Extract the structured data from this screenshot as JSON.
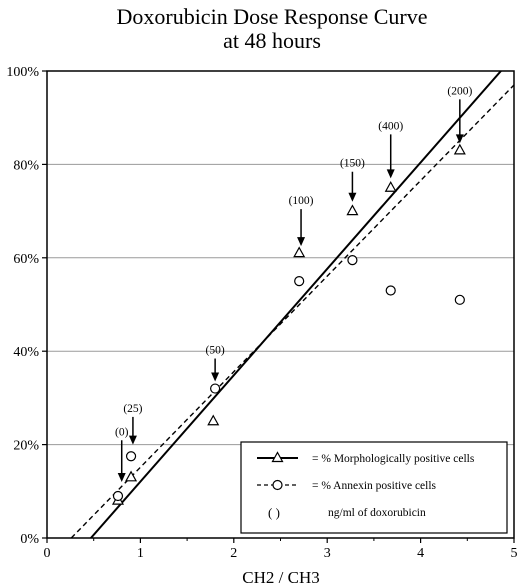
{
  "chart_data": {
    "type": "scatter",
    "title": "Doxorubicin Dose Response Curve",
    "subtitle": "at 48 hours",
    "xlabel": "CH2 / CH3",
    "ylabel": "",
    "xlim": [
      0,
      5
    ],
    "ylim": [
      0,
      100
    ],
    "x_ticks": [
      "0",
      "1",
      "2",
      "3",
      "4",
      "5"
    ],
    "y_ticks": [
      "0%",
      "20%",
      "40%",
      "60%",
      "80%",
      "100%"
    ],
    "grid": "horizontal",
    "legend_position": "bottom-right",
    "series": [
      {
        "name": "= % Morphologically positive cells",
        "marker": "triangle",
        "line_style": "solid",
        "x": [
          0.76,
          0.9,
          1.78,
          2.7,
          3.27,
          3.68,
          4.42
        ],
        "y": [
          8,
          13,
          25,
          61,
          70,
          75,
          83
        ],
        "fit": {
          "x": [
            0.47,
            4.86
          ],
          "y": [
            0,
            100
          ]
        }
      },
      {
        "name": "= % Annexin positive cells",
        "marker": "circle",
        "line_style": "dashed",
        "x": [
          0.76,
          0.9,
          1.8,
          2.7,
          3.27,
          3.68,
          4.42
        ],
        "y": [
          9,
          17.5,
          32,
          55,
          59.5,
          53,
          51
        ],
        "fit": {
          "x": [
            0.26,
            5
          ],
          "y": [
            0,
            97
          ]
        }
      }
    ],
    "dose_legend": "ng/ml of doxorubicin",
    "dose_legend_symbol": "( )",
    "annotations": [
      {
        "text": "(0)",
        "x": 0.8,
        "label_y": 22,
        "arrow_end_y": 12
      },
      {
        "text": "(25)",
        "x": 0.92,
        "label_y": 27,
        "arrow_end_y": 20
      },
      {
        "text": "(50)",
        "x": 1.8,
        "label_y": 39.5,
        "arrow_end_y": 33.5
      },
      {
        "text": "(100)",
        "x": 2.72,
        "label_y": 71.5,
        "arrow_end_y": 62.5
      },
      {
        "text": "(150)",
        "x": 3.27,
        "label_y": 79.5,
        "arrow_end_y": 72
      },
      {
        "text": "(400)",
        "x": 3.68,
        "label_y": 87.5,
        "arrow_end_y": 77
      },
      {
        "text": "(200)",
        "x": 4.42,
        "label_y": 95,
        "arrow_end_y": 84.5
      }
    ]
  }
}
